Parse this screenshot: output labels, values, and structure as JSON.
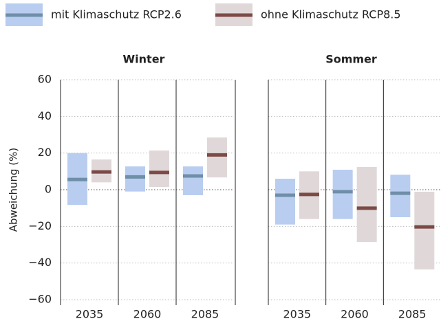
{
  "chart_data": {
    "type": "range",
    "ylabel": "Abweichung (%)",
    "ylim": [
      -60,
      60
    ],
    "yticks": [
      {
        "value": -60,
        "label": "−60"
      },
      {
        "value": -40,
        "label": "−40"
      },
      {
        "value": -20,
        "label": "−20"
      },
      0,
      20,
      40,
      60
    ],
    "grid": true,
    "series": [
      {
        "name": "mit Klimaschutz RCP2.6",
        "color": "#6f8ea8",
        "fill": "#b9cdf0"
      },
      {
        "name": "ohne Klimaschutz RCP8.5",
        "color": "#7b4a46",
        "fill": "#e0d8d8"
      }
    ],
    "panels": [
      {
        "title": "Winter",
        "categories": [
          "2035",
          "2060",
          "2085"
        ],
        "series": [
          {
            "low": [
              -8.3,
              -1,
              -3
            ],
            "median": [
              5.6,
              7,
              7.5
            ],
            "high": [
              20,
              12.7,
              12.7
            ]
          },
          {
            "low": [
              4,
              1.5,
              6.7
            ],
            "median": [
              9.7,
              9.4,
              19
            ],
            "high": [
              16.5,
              21.4,
              28.5
            ]
          }
        ]
      },
      {
        "title": "Sommer",
        "categories": [
          "2035",
          "2060",
          "2085"
        ],
        "series": [
          {
            "low": [
              -19,
              -16,
              -15
            ],
            "median": [
              -3,
              -1.1,
              -1.9
            ],
            "high": [
              6,
              10.9,
              8.2
            ]
          },
          {
            "low": [
              -16,
              -28.5,
              -43.5
            ],
            "median": [
              -2.6,
              -10.1,
              -20.3
            ],
            "high": [
              10,
              12.4,
              -1.1
            ]
          }
        ]
      }
    ]
  }
}
